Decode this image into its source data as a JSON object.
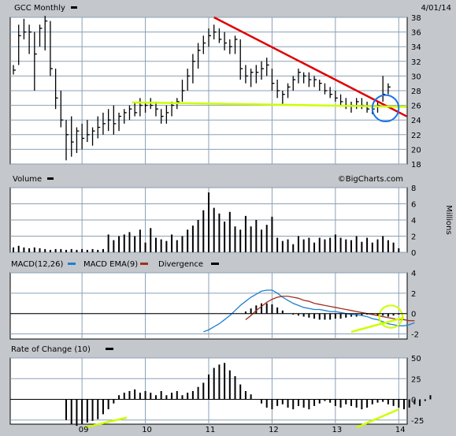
{
  "header": {
    "symbol_label": "GCC Monthly",
    "date": "4/01/14"
  },
  "chart_data": [
    {
      "type": "ohlc",
      "panel": "price",
      "title": "GCC Monthly",
      "date_label": "4/01/14",
      "y_range": [
        18,
        38
      ],
      "y_ticks": [
        18,
        20,
        22,
        24,
        26,
        28,
        30,
        32,
        34,
        36,
        38
      ],
      "x_labels": [
        "09",
        "10",
        "11",
        "12",
        "13",
        "14"
      ],
      "x_label_months": [
        13,
        25,
        37,
        49,
        61,
        73
      ],
      "grid": true,
      "bars_hlc": [
        [
          31.5,
          30.2,
          30.8
        ],
        [
          37.0,
          31.5,
          35.5
        ],
        [
          37.8,
          35.0,
          36.0
        ],
        [
          37.0,
          33.0,
          36.0
        ],
        [
          36.0,
          28.0,
          33.0
        ],
        [
          37.0,
          34.0,
          36.5
        ],
        [
          38.2,
          33.5,
          37.5
        ],
        [
          37.5,
          30.0,
          31.0
        ],
        [
          31.0,
          25.5,
          27.0
        ],
        [
          28.0,
          23.0,
          24.0
        ],
        [
          24.0,
          18.5,
          22.0
        ],
        [
          24.5,
          19.0,
          21.0
        ],
        [
          23.0,
          19.5,
          22.5
        ],
        [
          23.5,
          20.0,
          21.5
        ],
        [
          24.0,
          21.0,
          22.0
        ],
        [
          23.0,
          20.5,
          22.5
        ],
        [
          24.5,
          21.5,
          23.0
        ],
        [
          25.0,
          22.0,
          23.5
        ],
        [
          25.5,
          22.5,
          24.0
        ],
        [
          26.0,
          22.0,
          23.5
        ],
        [
          25.0,
          22.5,
          24.5
        ],
        [
          25.5,
          23.5,
          25.0
        ],
        [
          26.0,
          24.0,
          25.5
        ],
        [
          26.5,
          24.5,
          25.0
        ],
        [
          27.0,
          24.5,
          26.0
        ],
        [
          26.5,
          25.0,
          26.0
        ],
        [
          27.0,
          25.5,
          26.0
        ],
        [
          26.5,
          24.5,
          25.5
        ],
        [
          25.5,
          23.5,
          24.5
        ],
        [
          26.0,
          23.5,
          25.0
        ],
        [
          26.5,
          24.5,
          26.0
        ],
        [
          27.0,
          25.5,
          26.5
        ],
        [
          29.5,
          26.5,
          28.0
        ],
        [
          31.0,
          28.0,
          30.0
        ],
        [
          33.0,
          29.0,
          32.0
        ],
        [
          34.5,
          31.0,
          33.5
        ],
        [
          35.5,
          33.0,
          34.5
        ],
        [
          36.5,
          34.0,
          35.5
        ],
        [
          37.0,
          35.0,
          36.0
        ],
        [
          36.5,
          34.5,
          35.0
        ],
        [
          36.0,
          33.5,
          34.5
        ],
        [
          35.0,
          33.0,
          34.0
        ],
        [
          35.5,
          33.0,
          35.0
        ],
        [
          35.0,
          29.5,
          31.0
        ],
        [
          31.5,
          29.0,
          30.0
        ],
        [
          31.0,
          28.5,
          30.5
        ],
        [
          31.5,
          29.0,
          30.5
        ],
        [
          32.0,
          29.5,
          31.0
        ],
        [
          32.5,
          30.0,
          31.5
        ],
        [
          31.0,
          28.0,
          29.0
        ],
        [
          29.5,
          27.0,
          28.0
        ],
        [
          28.0,
          26.0,
          27.5
        ],
        [
          29.0,
          27.0,
          28.5
        ],
        [
          30.0,
          28.0,
          29.5
        ],
        [
          31.0,
          29.0,
          30.5
        ],
        [
          30.5,
          29.0,
          30.0
        ],
        [
          30.5,
          28.5,
          29.5
        ],
        [
          30.0,
          28.5,
          29.5
        ],
        [
          29.5,
          28.0,
          29.0
        ],
        [
          29.0,
          27.5,
          28.0
        ],
        [
          28.5,
          27.0,
          27.5
        ],
        [
          28.0,
          26.5,
          27.0
        ],
        [
          27.5,
          26.0,
          26.5
        ],
        [
          27.0,
          25.5,
          26.0
        ],
        [
          26.5,
          25.0,
          26.0
        ],
        [
          27.0,
          25.5,
          26.5
        ],
        [
          27.0,
          25.5,
          26.0
        ],
        [
          26.5,
          25.0,
          25.5
        ],
        [
          26.0,
          24.8,
          25.5
        ],
        [
          26.5,
          25.0,
          26.0
        ],
        [
          30.0,
          26.5,
          27.5
        ],
        [
          29.0,
          27.5,
          28.5
        ]
      ],
      "annotations": [
        {
          "type": "trendline",
          "color": "#e00000",
          "from": [
            38,
            38
          ],
          "to": [
            74.5,
            24.5
          ]
        },
        {
          "type": "trendline",
          "color": "#ccff00",
          "from": [
            22.5,
            26.4
          ],
          "to": [
            74.5,
            25.8
          ]
        },
        {
          "type": "ellipse",
          "color": "#1a73e8",
          "center": [
            70.5,
            25.6
          ],
          "radius_months": 2.5,
          "radius_value": 1.8
        }
      ]
    },
    {
      "type": "bar",
      "panel": "volume",
      "title": "Volume",
      "credit": "©BigCharts.com",
      "ylabel": "Millions",
      "y_range": [
        0,
        8
      ],
      "y_ticks": [
        0,
        2,
        4,
        6,
        8
      ],
      "values": [
        0.6,
        0.8,
        0.6,
        0.5,
        0.6,
        0.5,
        0.4,
        0.3,
        0.4,
        0.4,
        0.3,
        0.4,
        0.3,
        0.4,
        0.3,
        0.4,
        0.3,
        0.4,
        2.2,
        1.5,
        2.0,
        2.2,
        2.5,
        2.0,
        2.8,
        1.2,
        3.0,
        1.8,
        1.6,
        1.4,
        2.2,
        1.5,
        2.0,
        2.8,
        3.3,
        4.0,
        5.2,
        7.4,
        5.5,
        4.8,
        3.8,
        5.0,
        3.2,
        2.8,
        4.5,
        3.2,
        4.0,
        2.8,
        3.4,
        4.4,
        1.8,
        1.4,
        1.6,
        1.0,
        2.0,
        1.6,
        1.8,
        1.2,
        1.8,
        1.6,
        1.8,
        2.2,
        1.8,
        1.6,
        1.5,
        2.0,
        1.3,
        1.8,
        1.2,
        1.6,
        2.0,
        1.5,
        1.2,
        0.5
      ]
    },
    {
      "type": "line",
      "panel": "macd",
      "legend": [
        "MACD(12,26)",
        "MACD EMA(9)",
        "Divergence"
      ],
      "y_range": [
        -2.5,
        4
      ],
      "y_ticks": [
        -2,
        0,
        2,
        4
      ],
      "series": [
        {
          "name": "MACD(12,26)",
          "color": "#1e7fd0",
          "start_month": 36,
          "values": [
            -1.8,
            -1.6,
            -1.3,
            -1.0,
            -0.6,
            -0.2,
            0.3,
            0.8,
            1.2,
            1.6,
            1.9,
            2.2,
            2.3,
            2.3,
            2.0,
            1.6,
            1.3,
            1.0,
            0.8,
            0.6,
            0.5,
            0.4,
            0.4,
            0.3,
            0.2,
            0.2,
            0.1,
            0.0,
            -0.1,
            -0.1,
            -0.2,
            -0.3,
            -0.5,
            -0.6,
            -0.8,
            -1.0,
            -1.1,
            -1.2,
            -1.2,
            -1.1,
            -0.9
          ]
        },
        {
          "name": "MACD EMA(9)",
          "color": "#a03020",
          "start_month": 44,
          "values": [
            -0.6,
            -0.2,
            0.3,
            0.7,
            1.1,
            1.4,
            1.6,
            1.7,
            1.7,
            1.6,
            1.5,
            1.3,
            1.2,
            1.0,
            0.9,
            0.8,
            0.7,
            0.6,
            0.5,
            0.4,
            0.3,
            0.2,
            0.1,
            0.0,
            -0.1,
            -0.2,
            -0.3,
            -0.4,
            -0.5,
            -0.6,
            -0.6,
            -0.7,
            -0.7
          ]
        }
      ],
      "divergence": [
        0,
        0,
        0,
        0,
        0,
        0,
        0,
        0,
        0,
        0,
        0,
        0,
        0,
        0,
        0,
        0,
        0,
        0,
        0,
        0,
        0,
        0,
        0,
        0,
        0,
        0,
        0,
        0,
        0,
        0,
        0,
        0,
        0,
        0,
        0,
        0,
        0,
        0,
        0,
        0,
        0,
        0,
        0,
        0,
        0.2,
        0.5,
        0.8,
        1.0,
        1.0,
        0.9,
        0.6,
        0.3,
        0.0,
        -0.1,
        -0.2,
        -0.3,
        -0.4,
        -0.5,
        -0.6,
        -0.6,
        -0.6,
        -0.5,
        -0.5,
        -0.4,
        -0.3,
        -0.3,
        -0.2,
        -0.1,
        -0.1,
        -0.2,
        -0.2,
        -0.3,
        -0.2,
        -0.1
      ],
      "annotations": [
        {
          "type": "trendline",
          "color": "#ccff00",
          "from": [
            64,
            -1.8
          ],
          "to": [
            74,
            -0.4
          ]
        },
        {
          "type": "ellipse",
          "color": "#ccff00",
          "center": [
            71.5,
            -0.3
          ],
          "radius_months": 2.2,
          "radius_value": 1.1
        }
      ]
    },
    {
      "type": "bar",
      "panel": "rate_of_change",
      "title": "Rate of Change (10)",
      "y_range": [
        -30,
        50
      ],
      "y_ticks": [
        -25,
        0,
        25,
        50
      ],
      "start_month": 10,
      "values": [
        -25,
        -30,
        -32,
        -30,
        -28,
        -26,
        -24,
        -18,
        -12,
        -5,
        5,
        8,
        10,
        12,
        8,
        10,
        8,
        5,
        10,
        5,
        8,
        10,
        5,
        8,
        10,
        15,
        20,
        30,
        38,
        42,
        44,
        35,
        28,
        18,
        10,
        6,
        0,
        -5,
        -10,
        -12,
        -8,
        -6,
        -10,
        -12,
        -8,
        -10,
        -12,
        -8,
        -5,
        -2,
        -4,
        -8,
        -10,
        -6,
        -8,
        -10,
        -12,
        -10,
        -6,
        -4,
        -3,
        -6,
        -8,
        -10,
        -12,
        -10,
        -6,
        -8,
        -2,
        5
      ],
      "annotations": [
        {
          "type": "trendline",
          "color": "#ccff00",
          "from": [
            13.5,
            -34
          ],
          "to": [
            21.5,
            -22
          ]
        },
        {
          "type": "trendline",
          "color": "#ccff00",
          "from": [
            65,
            -34
          ],
          "to": [
            73,
            -12
          ]
        }
      ]
    }
  ]
}
